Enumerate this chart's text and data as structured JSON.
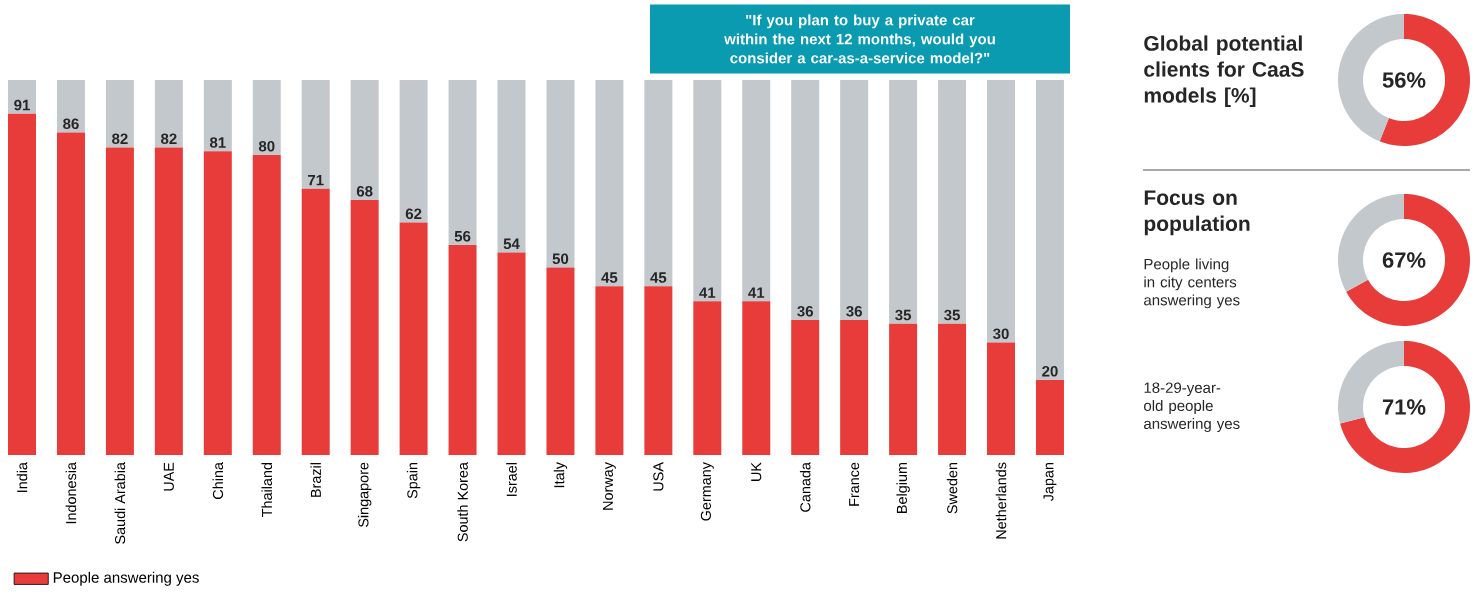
{
  "chart_data": [
    {
      "type": "bar",
      "stacked": true,
      "ylim": [
        0,
        100
      ],
      "tick_labels": "x",
      "legend": "bottom left",
      "categories": [
        "India",
        "Indonesia",
        "Saudi Arabia",
        "UAE",
        "China",
        "Thailand",
        "Brazil",
        "Singapore",
        "Spain",
        "South Korea",
        "Israel",
        "Italy",
        "Norway",
        "USA",
        "Germany",
        "UK",
        "Canada",
        "France",
        "Belgium",
        "Sweden",
        "Netherlands",
        "Japan"
      ],
      "series": [
        {
          "name": "People answering yes",
          "color": "#e83c3a",
          "values": [
            91,
            86,
            82,
            82,
            81,
            80,
            71,
            68,
            62,
            56,
            54,
            50,
            45,
            45,
            41,
            41,
            36,
            36,
            35,
            35,
            30,
            20
          ],
          "value_labels": [
            "91",
            "86",
            "82",
            "82",
            "81",
            "80",
            "71",
            "68",
            "62",
            "56",
            "54",
            "50",
            "45",
            "45",
            "41",
            "41",
            "36",
            "36",
            "35",
            "35",
            "30",
            "20"
          ]
        },
        {
          "color": "#c3c8cd",
          "values": [
            9,
            14,
            18,
            18,
            19,
            20,
            29,
            32,
            38,
            44,
            46,
            50,
            55,
            55,
            59,
            59,
            64,
            64,
            65,
            65,
            70,
            80
          ]
        }
      ],
      "annotations": [
        "\"If you plan to buy a private car within the next 12 months, would you consider a car-as-a-service model?\""
      ]
    },
    {
      "type": "donut",
      "title": "Global potential clients for CaaS models [%]",
      "categories": [
        null,
        null
      ],
      "values": [
        56,
        44
      ],
      "colors": [
        "#e83c3a",
        "#c3c8cd"
      ],
      "value_labels": [
        "56%",
        null
      ]
    },
    {
      "type": "donut",
      "title": "Focus on population",
      "subtitle": "People living in city centers answering yes",
      "categories": [
        null,
        null
      ],
      "values": [
        67,
        33
      ],
      "colors": [
        "#e83c3a",
        "#c3c8cd"
      ],
      "value_labels": [
        "67%",
        null
      ]
    },
    {
      "type": "donut",
      "subtitle": "18-29-year-old people answering yes",
      "categories": [
        null,
        null
      ],
      "values": [
        71,
        29
      ],
      "colors": [
        "#e83c3a",
        "#c3c8cd"
      ],
      "value_labels": [
        "71%",
        null
      ]
    }
  ]
}
